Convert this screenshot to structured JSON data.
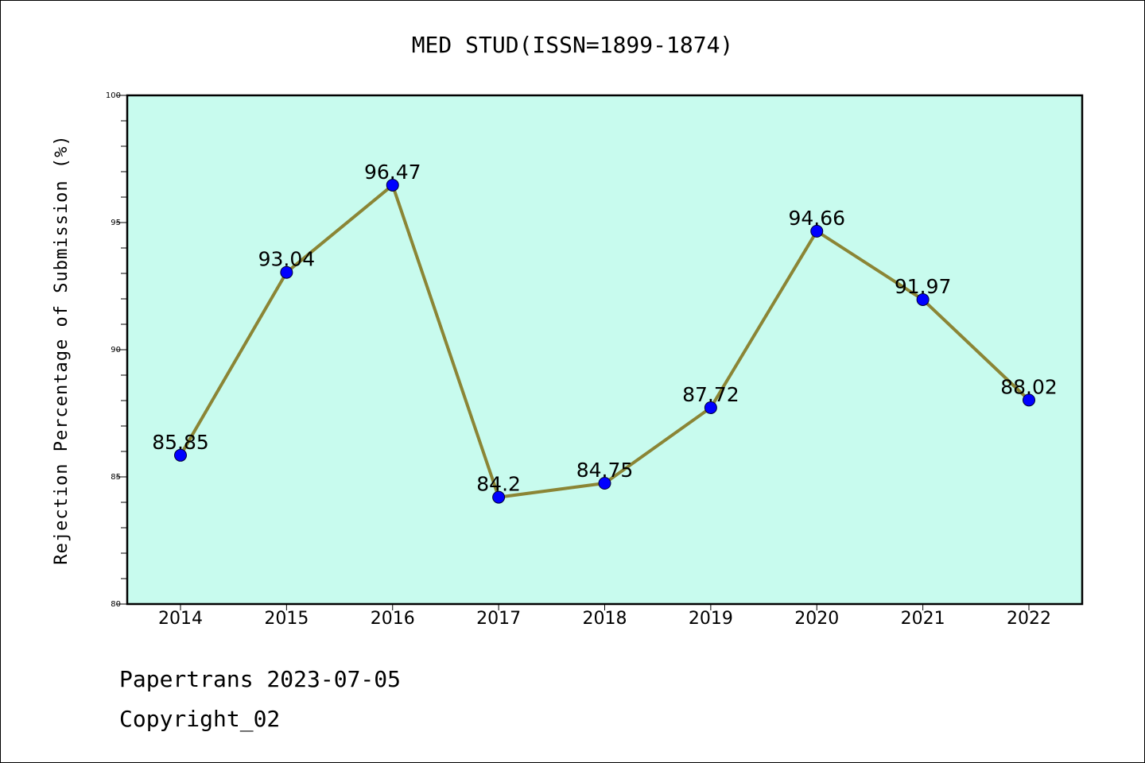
{
  "chart_data": {
    "type": "line",
    "title": "MED STUD(ISSN=1899-1874)",
    "ylabel": "Rejection Percentage of Submission (%)",
    "xlabel": "",
    "categories": [
      "2014",
      "2015",
      "2016",
      "2017",
      "2018",
      "2019",
      "2020",
      "2021",
      "2022"
    ],
    "values": [
      85.85,
      93.04,
      96.47,
      84.2,
      84.75,
      87.72,
      94.66,
      91.97,
      88.02
    ],
    "data_labels": [
      "85.85",
      "93.04",
      "96.47",
      "84.2",
      "84.75",
      "87.72",
      "94.66",
      "91.97",
      "88.02"
    ],
    "ylim": [
      80,
      100
    ],
    "yticks": [
      80,
      85,
      90,
      95,
      100
    ],
    "grid": false,
    "colors": {
      "plot_background": "#c8fbee",
      "line": "#8b8535",
      "marker": "#0000ff"
    }
  },
  "footer": {
    "line1": "Papertrans 2023-07-05",
    "line2": "Copyright_02"
  }
}
